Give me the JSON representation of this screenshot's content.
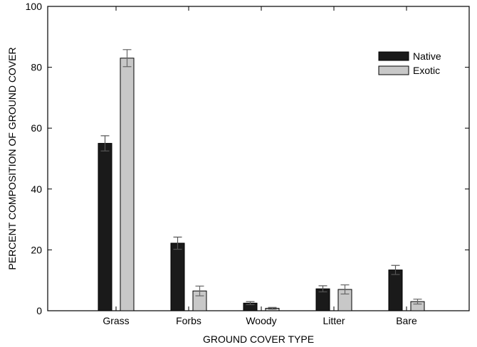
{
  "chart_data": {
    "type": "bar",
    "title": "",
    "xlabel": "GROUND COVER TYPE",
    "ylabel": "PERCENT COMPOSITION OF GROUND COVER",
    "ylim": [
      0,
      100
    ],
    "yticks": [
      0,
      20,
      40,
      60,
      80,
      100
    ],
    "categories": [
      "Grass",
      "Forbs",
      "Woody",
      "Litter",
      "Bare"
    ],
    "series": [
      {
        "name": "Native",
        "color": "#1a1a1a",
        "values": [
          55,
          22.2,
          2.5,
          7.2,
          13.4
        ],
        "errors": [
          2.5,
          2.0,
          0.5,
          1.0,
          1.5
        ]
      },
      {
        "name": "Exotic",
        "color": "#c8c8c8",
        "values": [
          83,
          6.5,
          0.8,
          7.0,
          3.0
        ],
        "errors": [
          2.8,
          1.6,
          0.3,
          1.5,
          0.8
        ]
      }
    ],
    "grid": false,
    "legend_position": "top-right",
    "error_bars": true
  }
}
